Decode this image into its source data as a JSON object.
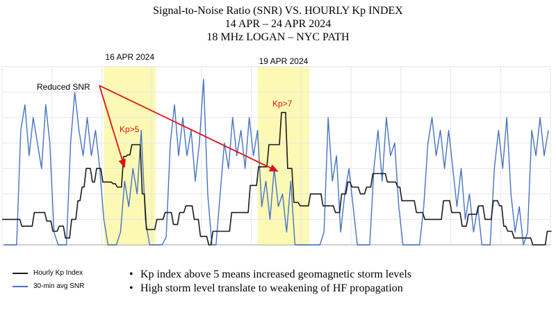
{
  "chart_data": {
    "type": "line",
    "title": [
      "Signal-to-Noise Ratio (SNR) VS. HOURLY Kp INDEX",
      "14 APR – 24 APR 2024",
      "18 MHz LOGAN – NYC PATH"
    ],
    "xlabel": "",
    "ylabel": "",
    "x_unit": "hours since 14 APR 2024 00:00",
    "xlim": [
      0,
      264
    ],
    "kp_ylim": [
      0,
      12
    ],
    "snr_ylim": [
      0,
      8
    ],
    "grid": true,
    "legend_placement": "bottom-left",
    "colors": {
      "kp": "#1a1a1a",
      "snr": "#4472c4",
      "highlight": "#fbf8a8",
      "annotation": "#e01010"
    },
    "highlights": [
      {
        "label": "16 APR 2024",
        "start_hour": 49,
        "end_hour": 74
      },
      {
        "label": "19 APR 2024",
        "start_hour": 123,
        "end_hour": 148
      }
    ],
    "series": [
      {
        "name": "Hourly Kp Index",
        "kind": "step",
        "points": [
          [
            0,
            1.5
          ],
          [
            9,
            1.1
          ],
          [
            15,
            1.9
          ],
          [
            21,
            1.4
          ],
          [
            24,
            0.8
          ],
          [
            27,
            1.1
          ],
          [
            30,
            0.4
          ],
          [
            33,
            1.5
          ],
          [
            36,
            2.6
          ],
          [
            38,
            3.4
          ],
          [
            40,
            4.5
          ],
          [
            43,
            3.7
          ],
          [
            45,
            4.5
          ],
          [
            48,
            3.7
          ],
          [
            53,
            3.6
          ],
          [
            55,
            3.4
          ],
          [
            58,
            5.2
          ],
          [
            60,
            5.3
          ],
          [
            62,
            5.9
          ],
          [
            67,
            3.0
          ],
          [
            69,
            0.9
          ],
          [
            74,
            1.5
          ],
          [
            78,
            1.9
          ],
          [
            82,
            1.2
          ],
          [
            85,
            1.9
          ],
          [
            88,
            2.3
          ],
          [
            92,
            1.5
          ],
          [
            95,
            0.5
          ],
          [
            99,
            0
          ],
          [
            101,
            0.8
          ],
          [
            110,
            1.9
          ],
          [
            119,
            3.5
          ],
          [
            123,
            4.6
          ],
          [
            128,
            5.9
          ],
          [
            134,
            7.8
          ],
          [
            137,
            4.5
          ],
          [
            140,
            2.5
          ],
          [
            143,
            2.3
          ],
          [
            148,
            3.0
          ],
          [
            154,
            2.3
          ],
          [
            160,
            1.9
          ],
          [
            163,
            3.0
          ],
          [
            166,
            3.7
          ],
          [
            168,
            3.4
          ],
          [
            172,
            3.0
          ],
          [
            175,
            3.4
          ],
          [
            178,
            4.2
          ],
          [
            185,
            3.7
          ],
          [
            190,
            3.4
          ],
          [
            192,
            2.6
          ],
          [
            199,
            1.9
          ],
          [
            203,
            1.5
          ],
          [
            212,
            2.6
          ],
          [
            216,
            1.9
          ],
          [
            221,
            1.1
          ],
          [
            224,
            1.8
          ],
          [
            229,
            2.3
          ],
          [
            232,
            1.5
          ],
          [
            236,
            2.6
          ],
          [
            239,
            2.3
          ],
          [
            241,
            1.1
          ],
          [
            243,
            0.8
          ],
          [
            246,
            0.4
          ],
          [
            255,
            0
          ],
          [
            262,
            0.8
          ],
          [
            264,
            0.8
          ]
        ]
      },
      {
        "name": "30-min avg SNR",
        "kind": "line",
        "step_hours": 2,
        "values": [
          0,
          0,
          0,
          0,
          4.5,
          5.5,
          3.5,
          5,
          4,
          3,
          5.5,
          4,
          0.5,
          0,
          0,
          0,
          4,
          6,
          4.5,
          3.5,
          5,
          3.5,
          4.5,
          3,
          1,
          0,
          0,
          0,
          0.5,
          2.5,
          1.5,
          3,
          2,
          4.5,
          1,
          0,
          0,
          0,
          0,
          0.3,
          4,
          5.5,
          3.5,
          5,
          3.5,
          4.5,
          2.5,
          4,
          6.5,
          2,
          0,
          0,
          2,
          4,
          3,
          5,
          3.5,
          4.5,
          3,
          5,
          3.5,
          4.5,
          1.5,
          2.5,
          1,
          3,
          1.5,
          2,
          0.5,
          2.5,
          0,
          0,
          0,
          0,
          0,
          0,
          0,
          0.5,
          5,
          2.5,
          3.5,
          0.5,
          2,
          3,
          1.5,
          0,
          0,
          0,
          0,
          3,
          4.5,
          2.5,
          5,
          3.5,
          4,
          1.5,
          0,
          0,
          0,
          0,
          0,
          1.5,
          4,
          5,
          3.5,
          4.5,
          3,
          4.5,
          3,
          1.5,
          3,
          1,
          2,
          0.5,
          1.5,
          0,
          0,
          0,
          3,
          4.5,
          3,
          5,
          2,
          0.5,
          1.5,
          0,
          0.5,
          4.5,
          3.5,
          5,
          3.5,
          4.5
        ]
      }
    ],
    "annotations": {
      "reduced_snr": "Reduced SNR",
      "kp5": "Kp>5",
      "kp7": "Kp>7"
    },
    "legend": [
      "Hourly Kp Index",
      "30-min avg SNR"
    ],
    "notes": [
      "Kp index above 5 means increased geomagnetic storm levels",
      "High storm level translate to weakening of HF propagation"
    ]
  }
}
